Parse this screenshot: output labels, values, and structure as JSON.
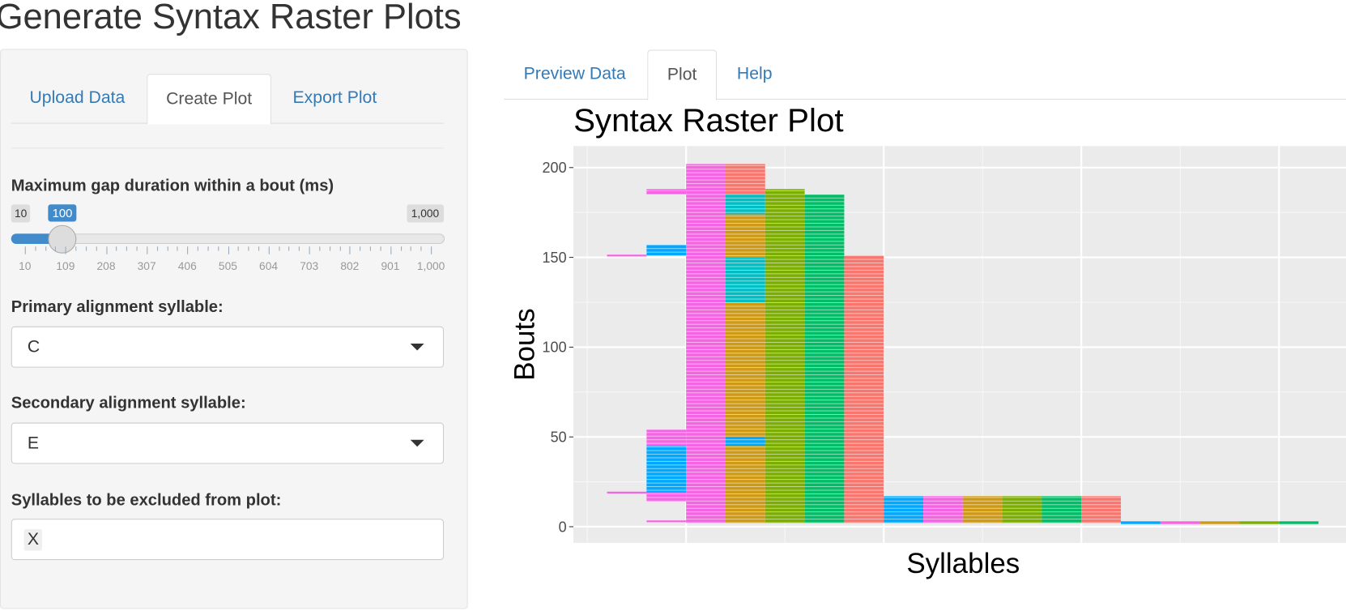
{
  "header": {
    "title": "Generate Syntax Raster Plots"
  },
  "sidebar": {
    "tabs": [
      "Upload Data",
      "Create Plot",
      "Export Plot"
    ],
    "active_tab": 1,
    "slider": {
      "label": "Maximum gap duration within a bout (ms)",
      "min": {
        "value": 10,
        "label": "10"
      },
      "max": {
        "value": 1000,
        "label": "1,000"
      },
      "value": 100,
      "ticks": [
        10,
        109,
        208,
        307,
        406,
        505,
        604,
        703,
        802,
        901,
        {
          "value": 1000,
          "label": "1,000"
        }
      ]
    },
    "primary": {
      "label": "Primary alignment syllable:",
      "value": "C"
    },
    "secondary": {
      "label": "Secondary alignment syllable:",
      "value": "E"
    },
    "excluded": {
      "label": "Syllables to be excluded from plot:",
      "values": [
        "X"
      ]
    }
  },
  "main": {
    "tabs": [
      "Preview Data",
      "Plot",
      "Help"
    ],
    "active_tab": 1
  },
  "chart_data": {
    "type": "raster",
    "title": "Syntax Raster Plot",
    "x_label": "Syllables",
    "y_label": "Bouts",
    "xlim": [
      -0.57,
      3.6
    ],
    "ylim": [
      -9,
      212
    ],
    "yticks": [
      0,
      50,
      100,
      150,
      200
    ],
    "yminor": [
      25,
      75,
      125,
      175
    ],
    "xgrid": [
      0,
      1,
      2,
      3
    ],
    "xminor": [
      -0.5,
      0.5,
      1.5,
      2.5,
      3.5
    ],
    "segments": [
      {
        "x": [
          -0.4,
          -0.2
        ],
        "y": [
          150.5,
          151.5
        ],
        "color": "#F564E3"
      },
      {
        "x": [
          -0.4,
          -0.2
        ],
        "y": [
          18.5,
          19.5
        ],
        "color": "#F564E3"
      },
      {
        "x": [
          -0.2,
          0
        ],
        "y": [
          2.5,
          3.5
        ],
        "color": "#F564E3"
      },
      {
        "x": [
          -0.2,
          0
        ],
        "y": [
          14,
          19
        ],
        "color": "#F564E3"
      },
      {
        "x": [
          -0.2,
          0
        ],
        "y": [
          19,
          45
        ],
        "color": "#00A9FF"
      },
      {
        "x": [
          -0.2,
          0
        ],
        "y": [
          45,
          54
        ],
        "color": "#F564E3"
      },
      {
        "x": [
          -0.2,
          0
        ],
        "y": [
          151,
          157
        ],
        "color": "#00A9FF"
      },
      {
        "x": [
          -0.2,
          0
        ],
        "y": [
          185,
          188
        ],
        "color": "#F564E3"
      },
      {
        "x": [
          0,
          0.2
        ],
        "y": [
          2,
          202
        ],
        "color": "#F564E3"
      },
      {
        "x": [
          0.2,
          0.4
        ],
        "y": [
          2,
          125
        ],
        "color": "#CE9A16"
      },
      {
        "x": [
          0.2,
          0.4
        ],
        "y": [
          45,
          50
        ],
        "color": "#00A9FF"
      },
      {
        "x": [
          0.2,
          0.4
        ],
        "y": [
          125,
          150
        ],
        "color": "#00BFC4"
      },
      {
        "x": [
          0.2,
          0.4
        ],
        "y": [
          150,
          174
        ],
        "color": "#CE9A16"
      },
      {
        "x": [
          0.2,
          0.4
        ],
        "y": [
          174,
          185
        ],
        "color": "#00BFC4"
      },
      {
        "x": [
          0.2,
          0.4
        ],
        "y": [
          185,
          202
        ],
        "color": "#F8766D"
      },
      {
        "x": [
          0.4,
          0.6
        ],
        "y": [
          2,
          188
        ],
        "color": "#7CAE00"
      },
      {
        "x": [
          0.6,
          0.8
        ],
        "y": [
          2,
          185
        ],
        "color": "#00BE67"
      },
      {
        "x": [
          0.8,
          1.0
        ],
        "y": [
          2,
          151
        ],
        "color": "#F8766D"
      },
      {
        "x": [
          1.0,
          1.2
        ],
        "y": [
          2,
          17
        ],
        "color": "#00A9FF"
      },
      {
        "x": [
          1.2,
          1.4
        ],
        "y": [
          2,
          17
        ],
        "color": "#F564E3"
      },
      {
        "x": [
          1.4,
          1.6
        ],
        "y": [
          2,
          17
        ],
        "color": "#CE9A16"
      },
      {
        "x": [
          1.6,
          1.8
        ],
        "y": [
          2,
          17
        ],
        "color": "#7CAE00"
      },
      {
        "x": [
          1.8,
          2.0
        ],
        "y": [
          2,
          17
        ],
        "color": "#00BE67"
      },
      {
        "x": [
          2.0,
          2.2
        ],
        "y": [
          2,
          17
        ],
        "color": "#F8766D"
      },
      {
        "x": [
          2.2,
          2.4
        ],
        "y": [
          1.5,
          3
        ],
        "color": "#00A9FF"
      },
      {
        "x": [
          2.4,
          2.6
        ],
        "y": [
          1.5,
          3
        ],
        "color": "#F564E3"
      },
      {
        "x": [
          2.6,
          2.8
        ],
        "y": [
          1.5,
          3
        ],
        "color": "#CE9A16"
      },
      {
        "x": [
          2.8,
          3.0
        ],
        "y": [
          1.5,
          3
        ],
        "color": "#7CAE00"
      },
      {
        "x": [
          3.0,
          3.2
        ],
        "y": [
          1.5,
          3
        ],
        "color": "#00BE67"
      }
    ]
  }
}
